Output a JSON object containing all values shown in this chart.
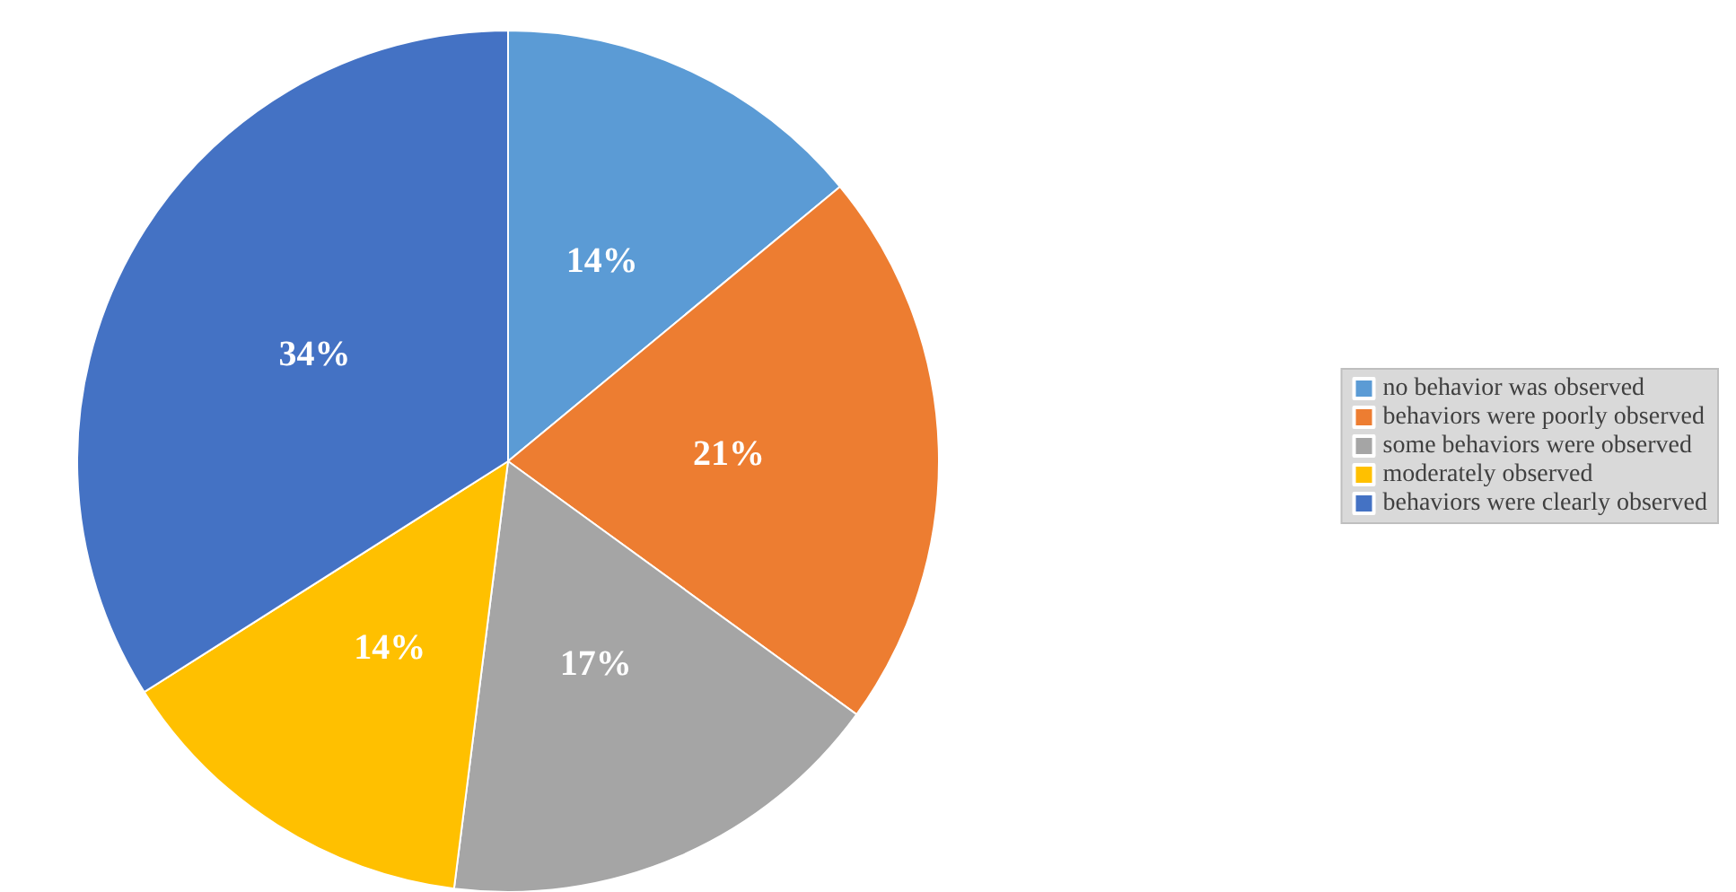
{
  "chart_data": {
    "type": "pie",
    "categories": [
      "no behavior was observed",
      "behaviors were poorly observed",
      "some behaviors were observed",
      "moderately observed",
      "behaviors were clearly observed"
    ],
    "values": [
      14,
      21,
      17,
      14,
      34
    ],
    "value_labels": [
      "14%",
      "21%",
      "17%",
      "14%",
      "34%"
    ],
    "colors": [
      "#5b9bd5",
      "#ed7d31",
      "#a5a5a5",
      "#ffc000",
      "#4472c4"
    ],
    "legend": "right"
  }
}
